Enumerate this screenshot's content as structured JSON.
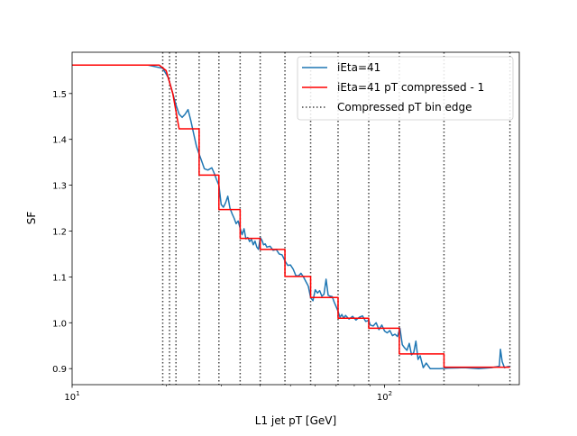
{
  "chart_data": {
    "type": "line",
    "title": "",
    "xlabel": "L1 jet pT [GeV]",
    "ylabel": "SF",
    "xscale": "log",
    "xlim": [
      10,
      270
    ],
    "ylim": [
      0.865,
      1.59
    ],
    "grid": false,
    "legend_position": "top-right",
    "x_major_ticks": [
      10,
      100
    ],
    "x_major_tick_labels": [
      "10^1",
      "10^2"
    ],
    "x_minor_ticks": [
      20,
      30,
      40,
      50,
      60,
      70,
      80,
      90,
      200
    ],
    "y_ticks": [
      0.9,
      1.0,
      1.1,
      1.2,
      1.3,
      1.4,
      1.5
    ],
    "y_tick_labels": [
      "0.9",
      "1.0",
      "1.1",
      "1.2",
      "1.3",
      "1.4",
      "1.5"
    ],
    "colors": {
      "raw": "#1f77b4",
      "compressed": "#ff0000",
      "bin_edge": "#444444"
    },
    "series": [
      {
        "name": "iEta=41",
        "style": "solid",
        "points": [
          [
            10,
            1.562
          ],
          [
            17.5,
            1.562
          ],
          [
            19.5,
            1.555
          ],
          [
            20.3,
            1.535
          ],
          [
            21.0,
            1.5
          ],
          [
            21.5,
            1.475
          ],
          [
            22.0,
            1.455
          ],
          [
            22.5,
            1.448
          ],
          [
            23.0,
            1.455
          ],
          [
            23.5,
            1.465
          ],
          [
            24.0,
            1.44
          ],
          [
            24.5,
            1.412
          ],
          [
            25.0,
            1.385
          ],
          [
            25.5,
            1.368
          ],
          [
            26.0,
            1.352
          ],
          [
            26.5,
            1.336
          ],
          [
            27.2,
            1.333
          ],
          [
            28.0,
            1.338
          ],
          [
            28.5,
            1.326
          ],
          [
            29.0,
            1.312
          ],
          [
            29.5,
            1.3
          ],
          [
            30.0,
            1.258
          ],
          [
            30.5,
            1.252
          ],
          [
            31.0,
            1.262
          ],
          [
            31.5,
            1.276
          ],
          [
            32.0,
            1.25
          ],
          [
            32.5,
            1.238
          ],
          [
            33.0,
            1.228
          ],
          [
            33.5,
            1.216
          ],
          [
            34.0,
            1.222
          ],
          [
            34.5,
            1.206
          ],
          [
            35.0,
            1.192
          ],
          [
            35.5,
            1.205
          ],
          [
            36.0,
            1.183
          ],
          [
            36.5,
            1.186
          ],
          [
            37.0,
            1.177
          ],
          [
            37.5,
            1.182
          ],
          [
            38.0,
            1.17
          ],
          [
            38.5,
            1.178
          ],
          [
            39.0,
            1.165
          ],
          [
            39.5,
            1.16
          ],
          [
            40.0,
            1.186
          ],
          [
            40.5,
            1.18
          ],
          [
            41.0,
            1.17
          ],
          [
            41.5,
            1.172
          ],
          [
            42.0,
            1.165
          ],
          [
            43.0,
            1.167
          ],
          [
            44.0,
            1.158
          ],
          [
            45.0,
            1.16
          ],
          [
            46.0,
            1.15
          ],
          [
            47.0,
            1.148
          ],
          [
            48.0,
            1.135
          ],
          [
            49.0,
            1.125
          ],
          [
            50.0,
            1.126
          ],
          [
            51.0,
            1.117
          ],
          [
            52.0,
            1.103
          ],
          [
            53.0,
            1.102
          ],
          [
            54.0,
            1.108
          ],
          [
            55.0,
            1.1
          ],
          [
            56.0,
            1.09
          ],
          [
            57.0,
            1.08
          ],
          [
            58.0,
            1.055
          ],
          [
            59.0,
            1.048
          ],
          [
            60.0,
            1.072
          ],
          [
            61.0,
            1.065
          ],
          [
            62.0,
            1.07
          ],
          [
            63.0,
            1.058
          ],
          [
            64.0,
            1.062
          ],
          [
            65.0,
            1.095
          ],
          [
            66.0,
            1.06
          ],
          [
            67.0,
            1.058
          ],
          [
            68.0,
            1.057
          ],
          [
            69.0,
            1.045
          ],
          [
            70.0,
            1.035
          ],
          [
            71.0,
            1.025
          ],
          [
            72.0,
            1.012
          ],
          [
            73.0,
            1.018
          ],
          [
            74.0,
            1.01
          ],
          [
            75.0,
            1.016
          ],
          [
            77.0,
            1.008
          ],
          [
            79.0,
            1.014
          ],
          [
            81.0,
            1.006
          ],
          [
            83.0,
            1.012
          ],
          [
            85.0,
            1.015
          ],
          [
            87.0,
            1.003
          ],
          [
            89.0,
            1.005
          ],
          [
            90.0,
            0.995
          ],
          [
            92.0,
            0.993
          ],
          [
            94.0,
            1.0
          ],
          [
            96.0,
            0.985
          ],
          [
            98.0,
            0.995
          ],
          [
            100.0,
            0.982
          ],
          [
            102.0,
            0.978
          ],
          [
            104.0,
            0.983
          ],
          [
            106.0,
            0.972
          ],
          [
            108.0,
            0.975
          ],
          [
            110.0,
            0.97
          ],
          [
            112.0,
            0.988
          ],
          [
            114.0,
            0.952
          ],
          [
            116.0,
            0.945
          ],
          [
            118.0,
            0.94
          ],
          [
            120.0,
            0.955
          ],
          [
            122.0,
            0.93
          ],
          [
            124.0,
            0.935
          ],
          [
            126.0,
            0.96
          ],
          [
            128.0,
            0.92
          ],
          [
            130.0,
            0.928
          ],
          [
            133.0,
            0.902
          ],
          [
            136.0,
            0.912
          ],
          [
            140.0,
            0.9
          ],
          [
            150.0,
            0.9
          ],
          [
            160.0,
            0.901
          ],
          [
            180.0,
            0.902
          ],
          [
            200.0,
            0.9
          ],
          [
            220.0,
            0.902
          ],
          [
            233.0,
            0.905
          ],
          [
            235.0,
            0.942
          ],
          [
            238.0,
            0.915
          ],
          [
            242.0,
            0.902
          ],
          [
            247.0,
            0.904
          ],
          [
            252.0,
            0.905
          ]
        ]
      },
      {
        "name": "iEta=41 pT compressed - 1",
        "style": "steps",
        "points": [
          [
            10,
            1.562
          ],
          [
            19.0,
            1.562
          ],
          [
            20.0,
            1.55
          ],
          [
            21.0,
            1.5
          ],
          [
            22.0,
            1.423
          ],
          [
            25.5,
            1.423
          ],
          [
            25.5,
            1.322
          ],
          [
            29.5,
            1.322
          ],
          [
            29.5,
            1.247
          ],
          [
            34.5,
            1.247
          ],
          [
            34.5,
            1.184
          ],
          [
            40.0,
            1.184
          ],
          [
            40.0,
            1.16
          ],
          [
            48.0,
            1.16
          ],
          [
            48.0,
            1.101
          ],
          [
            58.0,
            1.101
          ],
          [
            58.0,
            1.055
          ],
          [
            71.0,
            1.055
          ],
          [
            71.0,
            1.01
          ],
          [
            89.0,
            1.01
          ],
          [
            89.0,
            0.988
          ],
          [
            111.5,
            0.988
          ],
          [
            111.5,
            0.932
          ],
          [
            155.0,
            0.932
          ],
          [
            155.0,
            0.903
          ],
          [
            252.0,
            0.903
          ]
        ]
      }
    ],
    "bin_edges": {
      "name": "Compressed pT bin edge",
      "style": "dotted",
      "x": [
        19.5,
        20.5,
        21.5,
        25.5,
        29.5,
        34.5,
        40.0,
        48.0,
        58.0,
        71.0,
        89.0,
        111.5,
        155.0,
        252.0
      ]
    }
  }
}
